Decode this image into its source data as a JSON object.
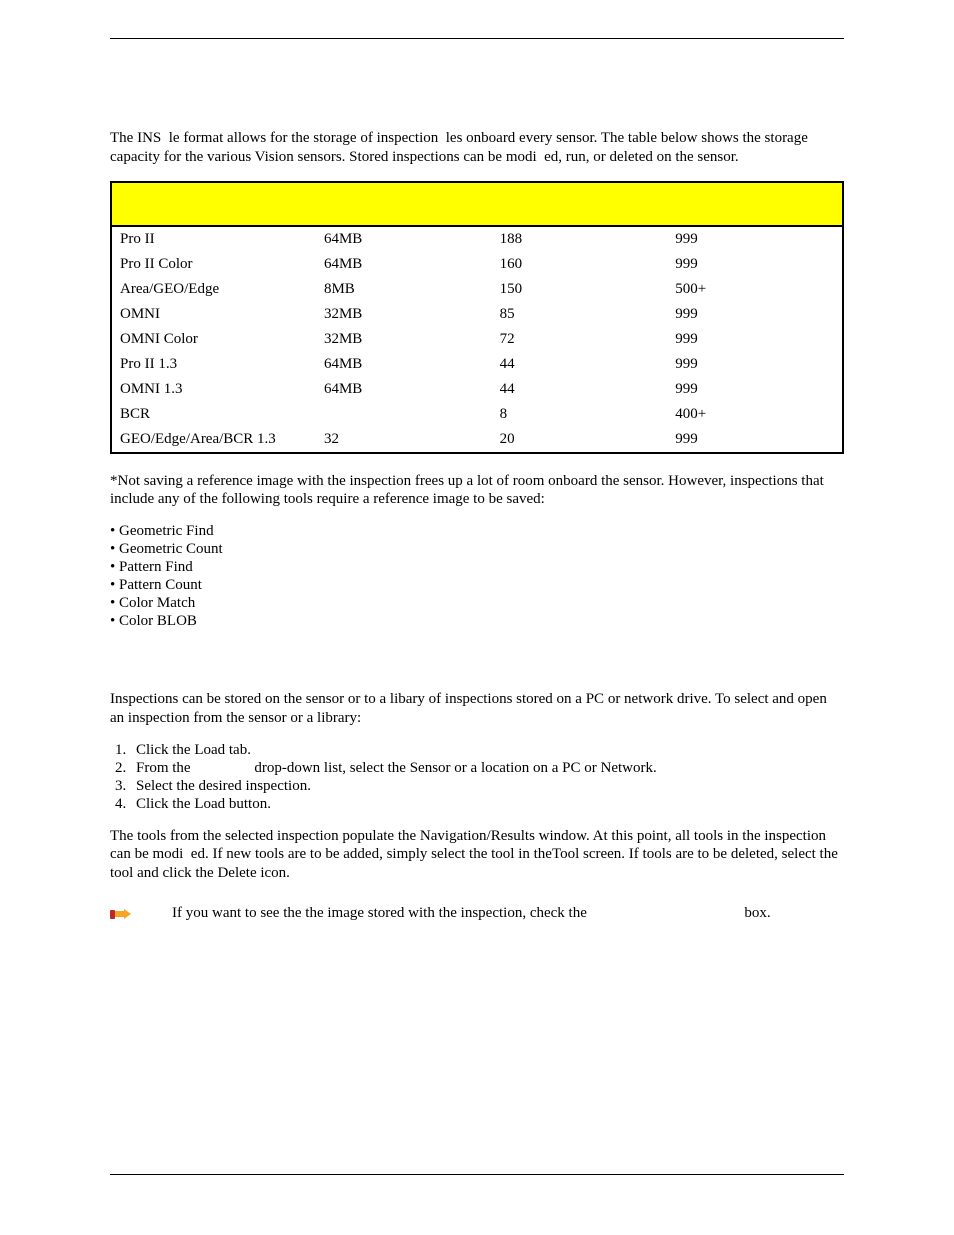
{
  "intro": "The INS  le format allows for the storage of inspection  les onboard every sensor. The table below shows the storage capacity for the various Vision sensors. Stored inspections can be modi  ed, run, or deleted on the sensor.",
  "table": {
    "rows": [
      {
        "a": "Pro II",
        "b": "64MB",
        "c": "188",
        "d": "999"
      },
      {
        "a": "Pro II Color",
        "b": "64MB",
        "c": "160",
        "d": "999"
      },
      {
        "a": "Area/GEO/Edge",
        "b": "8MB",
        "c": "150",
        "d": "500+"
      },
      {
        "a": "OMNI",
        "b": "32MB",
        "c": "85",
        "d": "999"
      },
      {
        "a": "OMNI Color",
        "b": "32MB",
        "c": "72",
        "d": "999"
      },
      {
        "a": "Pro II 1.3",
        "b": "64MB",
        "c": "44",
        "d": "999"
      },
      {
        "a": "OMNI 1.3",
        "b": "64MB",
        "c": "44",
        "d": "999"
      },
      {
        "a": "BCR",
        "b": "",
        "c": "8",
        "d": "400+"
      },
      {
        "a": "GEO/Edge/Area/BCR 1.3",
        "b": "32",
        "c": "20",
        "d": "999"
      }
    ]
  },
  "footnote": "*Not saving a reference image with the inspection frees up a lot of room onboard the sensor. However, inspections that include any of the following tools require a reference image to be saved:",
  "bullets": [
    "• Geometric Find",
    "• Geometric Count",
    "• Pattern Find",
    "• Pattern Count",
    "• Color Match",
    "• Color BLOB"
  ],
  "loadpara": "Inspections can be stored on the sensor or to a libary of inspections stored on a PC or network drive. To select and open an inspection from the sensor or a library:",
  "steps": [
    "Click the Load tab.",
    "From the                 drop-down list, select the Sensor or a location on a PC or Network.",
    "Select the desired inspection.",
    "Click the Load button."
  ],
  "para2": "The tools from the selected inspection populate the Navigation/Results window. At this point, all tools in the inspection can be modi  ed. If new tools are to be added, simply select the tool in theTool screen. If tools are to be deleted, select the tool and click the Delete icon.",
  "tip_a": "If you want to see the the image stored with the inspection, check the",
  "tip_b": "box.",
  "tip_icon_colors": {
    "cuff": "#c02828",
    "hand": "#f5a623"
  }
}
